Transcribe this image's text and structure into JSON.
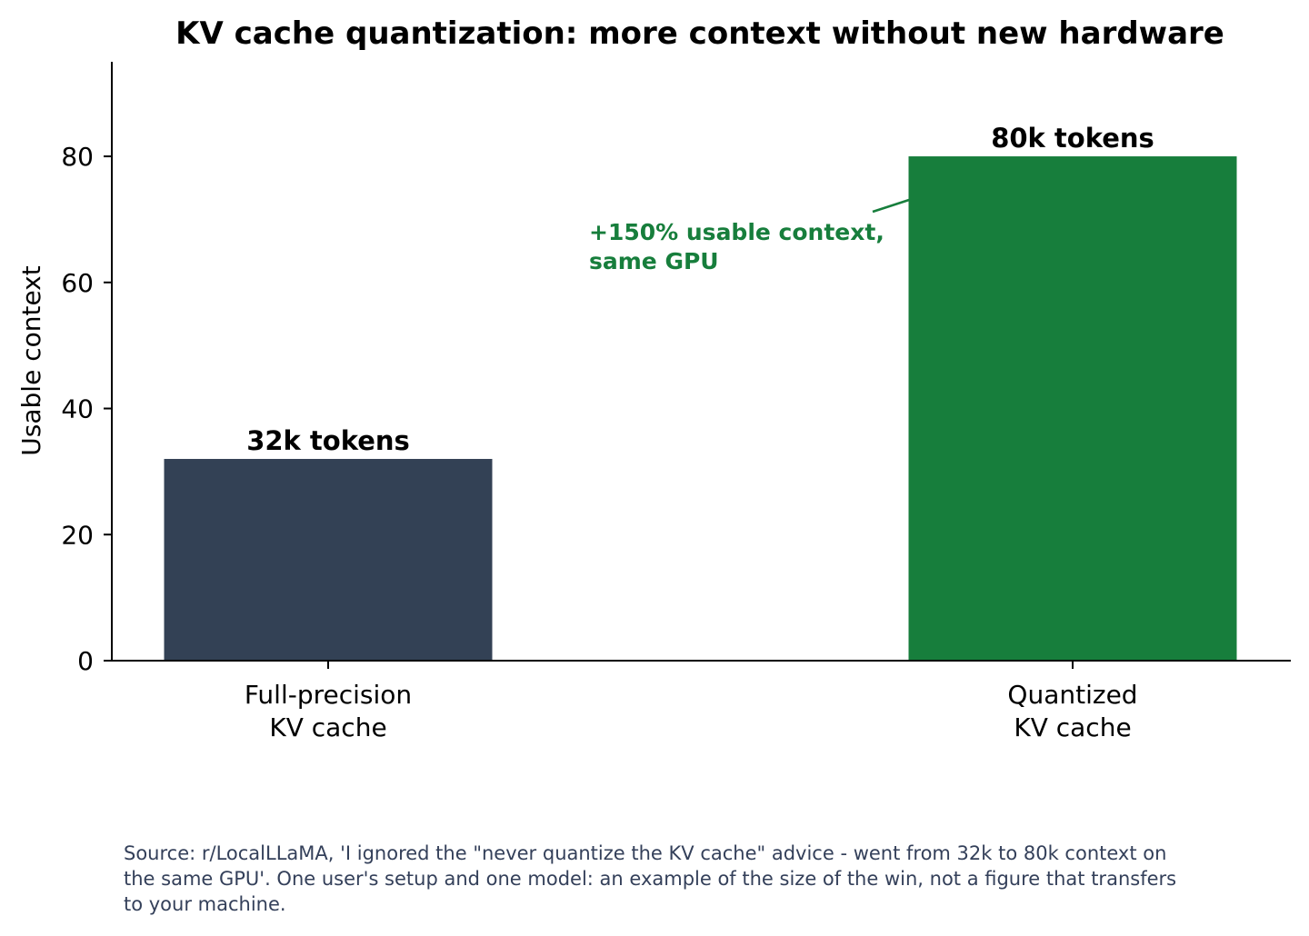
{
  "chart_data": {
    "type": "bar",
    "title": "KV cache quantization: more context without new hardware",
    "ylabel": "Usable context",
    "xlabel": "",
    "categories": [
      "Full-precision\nKV cache",
      "Quantized\nKV cache"
    ],
    "values": [
      32,
      80
    ],
    "data_labels": [
      "32k tokens",
      "80k tokens"
    ],
    "bar_colors": [
      "#334155",
      "#177e3c"
    ],
    "ylim": [
      0,
      95
    ],
    "yticks": [
      0,
      20,
      40,
      60,
      80
    ],
    "grid": false,
    "legend": "none",
    "annotation": {
      "text": "+150% usable context,\nsame GPU",
      "color": "#177e3c",
      "points_to": {
        "category_index": 1,
        "value": 80
      }
    }
  },
  "footer": {
    "source": "Source: r/LocalLLaMA, 'I ignored the \"never quantize the KV cache\" advice - went from 32k to 80k context on the same GPU'. One user's setup and one model: an example of the size of the win, not a figure that transfers to your machine."
  }
}
